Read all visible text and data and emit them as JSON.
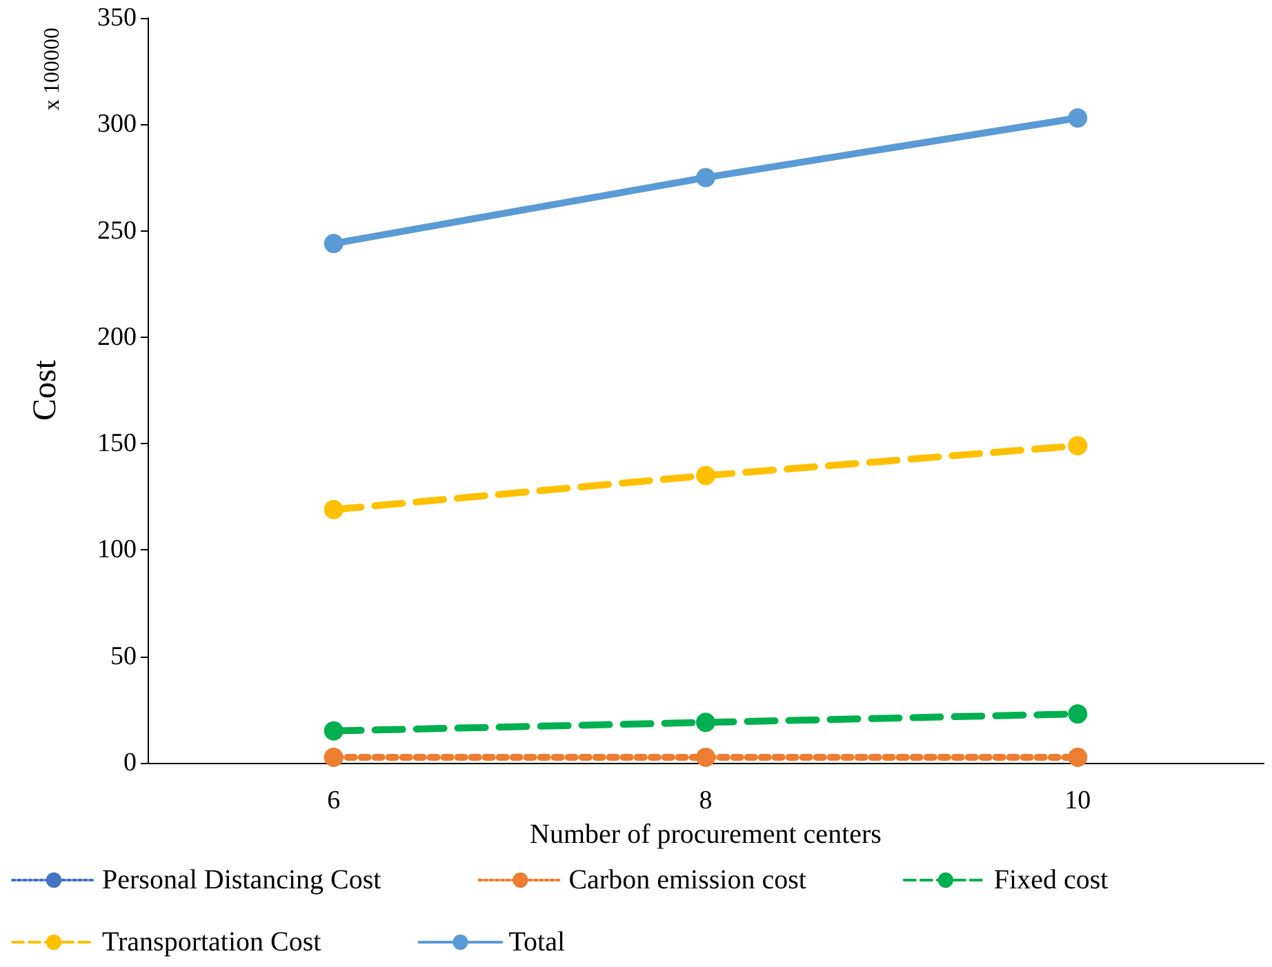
{
  "chart_data": {
    "type": "line",
    "xlabel": "Number of procurement centers",
    "ylabel": "Cost",
    "annotations": [
      "x 100000"
    ],
    "categories": [
      "6",
      "8",
      "10"
    ],
    "series": [
      {
        "name": "Personal Distancing Cost",
        "color": "#4472c4",
        "values": [
          null,
          null,
          null
        ],
        "line_style": "dotted"
      },
      {
        "name": "Carbon emission cost",
        "color": "#ed7d31",
        "values": [
          2.6,
          2.6,
          2.6
        ],
        "line_style": "dotted"
      },
      {
        "name": "Fixed cost",
        "color": "#00b050",
        "values": [
          15,
          19,
          23
        ],
        "line_style": "dashed"
      },
      {
        "name": "Transportation Cost",
        "color": "#ffc000",
        "values": [
          119,
          135,
          149
        ],
        "line_style": "dashed"
      },
      {
        "name": "Total",
        "color": "#5b9bd5",
        "values": [
          244,
          275,
          303
        ],
        "line_style": "solid"
      }
    ],
    "ylim": [
      0,
      350
    ],
    "yticks": [
      0,
      50,
      100,
      150,
      200,
      250,
      300,
      350
    ],
    "grid": false,
    "legend": "bottom",
    "marker": "circle"
  }
}
